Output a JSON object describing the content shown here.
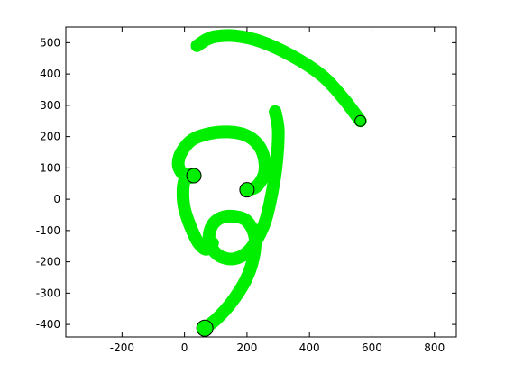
{
  "chart_data": {
    "type": "line",
    "title": "",
    "xlabel": "",
    "ylabel": "",
    "xlim": [
      -380,
      870
    ],
    "ylim": [
      -440,
      550
    ],
    "grid": false,
    "xticks": [
      -200,
      0,
      200,
      400,
      600,
      800
    ],
    "yticks": [
      -400,
      -300,
      -200,
      -100,
      0,
      100,
      200,
      300,
      400,
      500
    ],
    "xtick_labels": [
      "-200",
      "0",
      "200",
      "400",
      "600",
      "800"
    ],
    "ytick_labels": [
      "-400",
      "-300",
      "-200",
      "-100",
      "0",
      "100",
      "200",
      "300",
      "400",
      "500"
    ],
    "stroke_color": "#00ee00",
    "marker_fill": "#00ee00",
    "marker_edge": "#000000",
    "series": [
      {
        "points": [
          [
            40,
            490
          ],
          [
            70,
            510
          ],
          [
            100,
            520
          ],
          [
            160,
            522
          ],
          [
            240,
            505
          ],
          [
            340,
            460
          ],
          [
            440,
            395
          ],
          [
            510,
            320
          ],
          [
            563,
            250
          ]
        ]
      },
      {
        "points": [
          [
            290,
            280
          ],
          [
            300,
            220
          ],
          [
            295,
            120
          ],
          [
            280,
            20
          ],
          [
            255,
            -80
          ],
          [
            210,
            -160
          ],
          [
            160,
            -190
          ],
          [
            110,
            -180
          ],
          [
            80,
            -140
          ],
          [
            85,
            -90
          ],
          [
            115,
            -60
          ],
          [
            160,
            -55
          ],
          [
            200,
            -70
          ],
          [
            225,
            -120
          ],
          [
            220,
            -190
          ],
          [
            195,
            -260
          ],
          [
            150,
            -330
          ],
          [
            105,
            -380
          ],
          [
            65,
            -412
          ]
        ]
      },
      {
        "points": [
          [
            30,
            75
          ],
          [
            15,
            80
          ],
          [
            0,
            60
          ],
          [
            -5,
            20
          ],
          [
            0,
            -30
          ],
          [
            20,
            -90
          ],
          [
            45,
            -140
          ],
          [
            70,
            -160
          ],
          [
            90,
            -140
          ]
        ]
      },
      {
        "points": [
          [
            200,
            30
          ],
          [
            230,
            40
          ],
          [
            255,
            80
          ],
          [
            255,
            130
          ],
          [
            235,
            175
          ],
          [
            195,
            205
          ],
          [
            140,
            215
          ],
          [
            80,
            210
          ],
          [
            25,
            190
          ],
          [
            -10,
            150
          ],
          [
            -20,
            110
          ],
          [
            -5,
            80
          ],
          [
            20,
            70
          ],
          [
            30,
            75
          ]
        ]
      }
    ],
    "markers": [
      {
        "x": 563,
        "y": 250,
        "r": 6
      },
      {
        "x": 30,
        "y": 75,
        "r": 8
      },
      {
        "x": 200,
        "y": 30,
        "r": 8
      },
      {
        "x": 65,
        "y": -412,
        "r": 9
      }
    ]
  }
}
